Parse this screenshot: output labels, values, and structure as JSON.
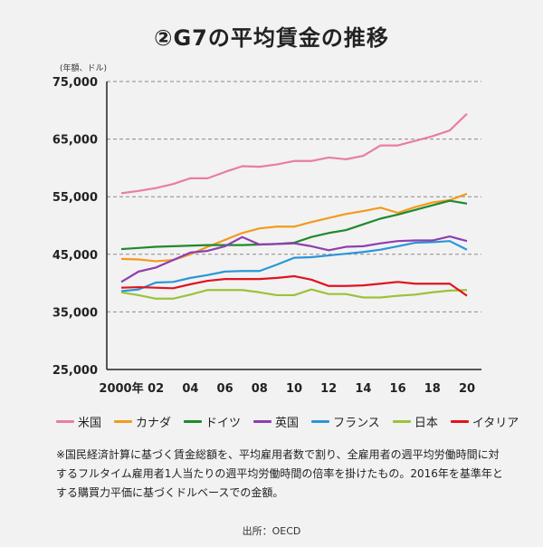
{
  "title": "②G7の平均賃金の推移",
  "unit_label": "(年額、ドル)",
  "note": "※国民経済計算に基づく賃金総額を、平均雇用者数で割り、全雇用者の週平均労働時間に対するフルタイム雇用者1人当たりの週平均労働時間の倍率を掛けたもの。2016年を基準年とする購買力平価に基づくドルベースでの金額。",
  "source": "出所：OECD",
  "chart_data": {
    "type": "line",
    "title": "②G7の平均賃金の推移",
    "ylabel": "(年額、ドル)",
    "xlabel": "",
    "x": [
      2000,
      2001,
      2002,
      2003,
      2004,
      2005,
      2006,
      2007,
      2008,
      2009,
      2010,
      2011,
      2012,
      2013,
      2014,
      2015,
      2016,
      2017,
      2018,
      2019,
      2020
    ],
    "x_tick_values": [
      2000,
      2002,
      2004,
      2006,
      2008,
      2010,
      2012,
      2014,
      2016,
      2018,
      2020
    ],
    "x_tick_labels": [
      "2000年",
      "02",
      "04",
      "06",
      "08",
      "10",
      "12",
      "14",
      "16",
      "18",
      "20"
    ],
    "xlim": [
      2000,
      2020
    ],
    "ylim": [
      25000,
      75000
    ],
    "y_ticks": [
      25000,
      35000,
      45000,
      55000,
      65000,
      75000
    ],
    "y_tick_labels": [
      "25,000",
      "35,000",
      "45,000",
      "55,000",
      "65,000",
      "75,000"
    ],
    "grid": "horizontal dashed",
    "legend_position": "bottom",
    "series": [
      {
        "name": "米国",
        "color": "#e87ea1",
        "values": [
          55600,
          56000,
          56500,
          57200,
          58200,
          58200,
          59300,
          60300,
          60200,
          60600,
          61200,
          61200,
          61800,
          61500,
          62100,
          63900,
          63900,
          64700,
          65500,
          66500,
          69400
        ]
      },
      {
        "name": "カナダ",
        "color": "#f39a1d",
        "values": [
          44200,
          44100,
          43800,
          44000,
          45000,
          46300,
          47500,
          48700,
          49500,
          49800,
          49800,
          50600,
          51300,
          52000,
          52500,
          53100,
          52200,
          53200,
          54000,
          54400,
          55500
        ]
      },
      {
        "name": "ドイツ",
        "color": "#1e8a2c",
        "values": [
          45900,
          46100,
          46300,
          46400,
          46500,
          46600,
          46600,
          46600,
          46700,
          46800,
          47000,
          48000,
          48700,
          49200,
          50200,
          51200,
          51900,
          52700,
          53500,
          54300,
          53800
        ]
      },
      {
        "name": "英国",
        "color": "#8e3fb0",
        "values": [
          40200,
          42000,
          42700,
          44000,
          45300,
          45600,
          46400,
          48000,
          46700,
          46800,
          46900,
          46400,
          45700,
          46300,
          46400,
          46900,
          47300,
          47400,
          47400,
          48100,
          47300
        ]
      },
      {
        "name": "フランス",
        "color": "#2a96d8",
        "values": [
          38600,
          38900,
          40100,
          40200,
          40900,
          41400,
          42000,
          42100,
          42100,
          43200,
          44400,
          44500,
          44800,
          45100,
          45400,
          45800,
          46400,
          47000,
          47100,
          47300,
          45800
        ]
      },
      {
        "name": "日本",
        "color": "#9bc23c",
        "values": [
          38400,
          37900,
          37300,
          37300,
          38000,
          38800,
          38800,
          38800,
          38400,
          37900,
          37900,
          38900,
          38100,
          38100,
          37500,
          37500,
          37800,
          38000,
          38400,
          38700,
          38800
        ]
      },
      {
        "name": "イタリア",
        "color": "#e0141e",
        "values": [
          39200,
          39300,
          39200,
          39100,
          39800,
          40400,
          40700,
          40700,
          40700,
          40900,
          41200,
          40600,
          39500,
          39500,
          39600,
          39900,
          40200,
          39900,
          39900,
          39900,
          37800
        ]
      }
    ]
  }
}
